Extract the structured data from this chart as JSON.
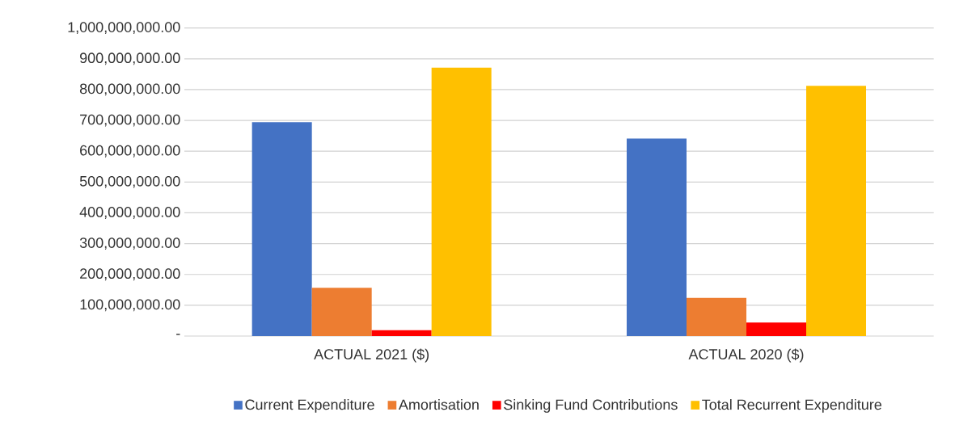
{
  "chart_data": {
    "type": "bar",
    "categories": [
      "ACTUAL 2021 ($)",
      "ACTUAL 2020 ($)"
    ],
    "series": [
      {
        "name": "Current Expenditure",
        "color": "#4472c4",
        "values": [
          694000000,
          641000000
        ]
      },
      {
        "name": "Amortisation",
        "color": "#ed7d31",
        "values": [
          157000000,
          124000000
        ]
      },
      {
        "name": "Sinking Fund Contributions",
        "color": "#ff0000",
        "values": [
          19000000,
          44000000
        ]
      },
      {
        "name": "Total Recurrent Expenditure",
        "color": "#ffc000",
        "values": [
          871000000,
          812000000
        ]
      }
    ],
    "ylim": [
      0,
      1000000000
    ],
    "yticks": [
      {
        "value": 0,
        "label": "-"
      },
      {
        "value": 100000000,
        "label": "100,000,000.00"
      },
      {
        "value": 200000000,
        "label": "200,000,000.00"
      },
      {
        "value": 300000000,
        "label": "300,000,000.00"
      },
      {
        "value": 400000000,
        "label": "400,000,000.00"
      },
      {
        "value": 500000000,
        "label": "500,000,000.00"
      },
      {
        "value": 600000000,
        "label": "600,000,000.00"
      },
      {
        "value": 700000000,
        "label": "700,000,000.00"
      },
      {
        "value": 800000000,
        "label": "800,000,000.00"
      },
      {
        "value": 900000000,
        "label": "900,000,000.00"
      },
      {
        "value": 1000000000,
        "label": "1,000,000,000.00"
      }
    ],
    "grid": "y",
    "legend": "bottom"
  }
}
